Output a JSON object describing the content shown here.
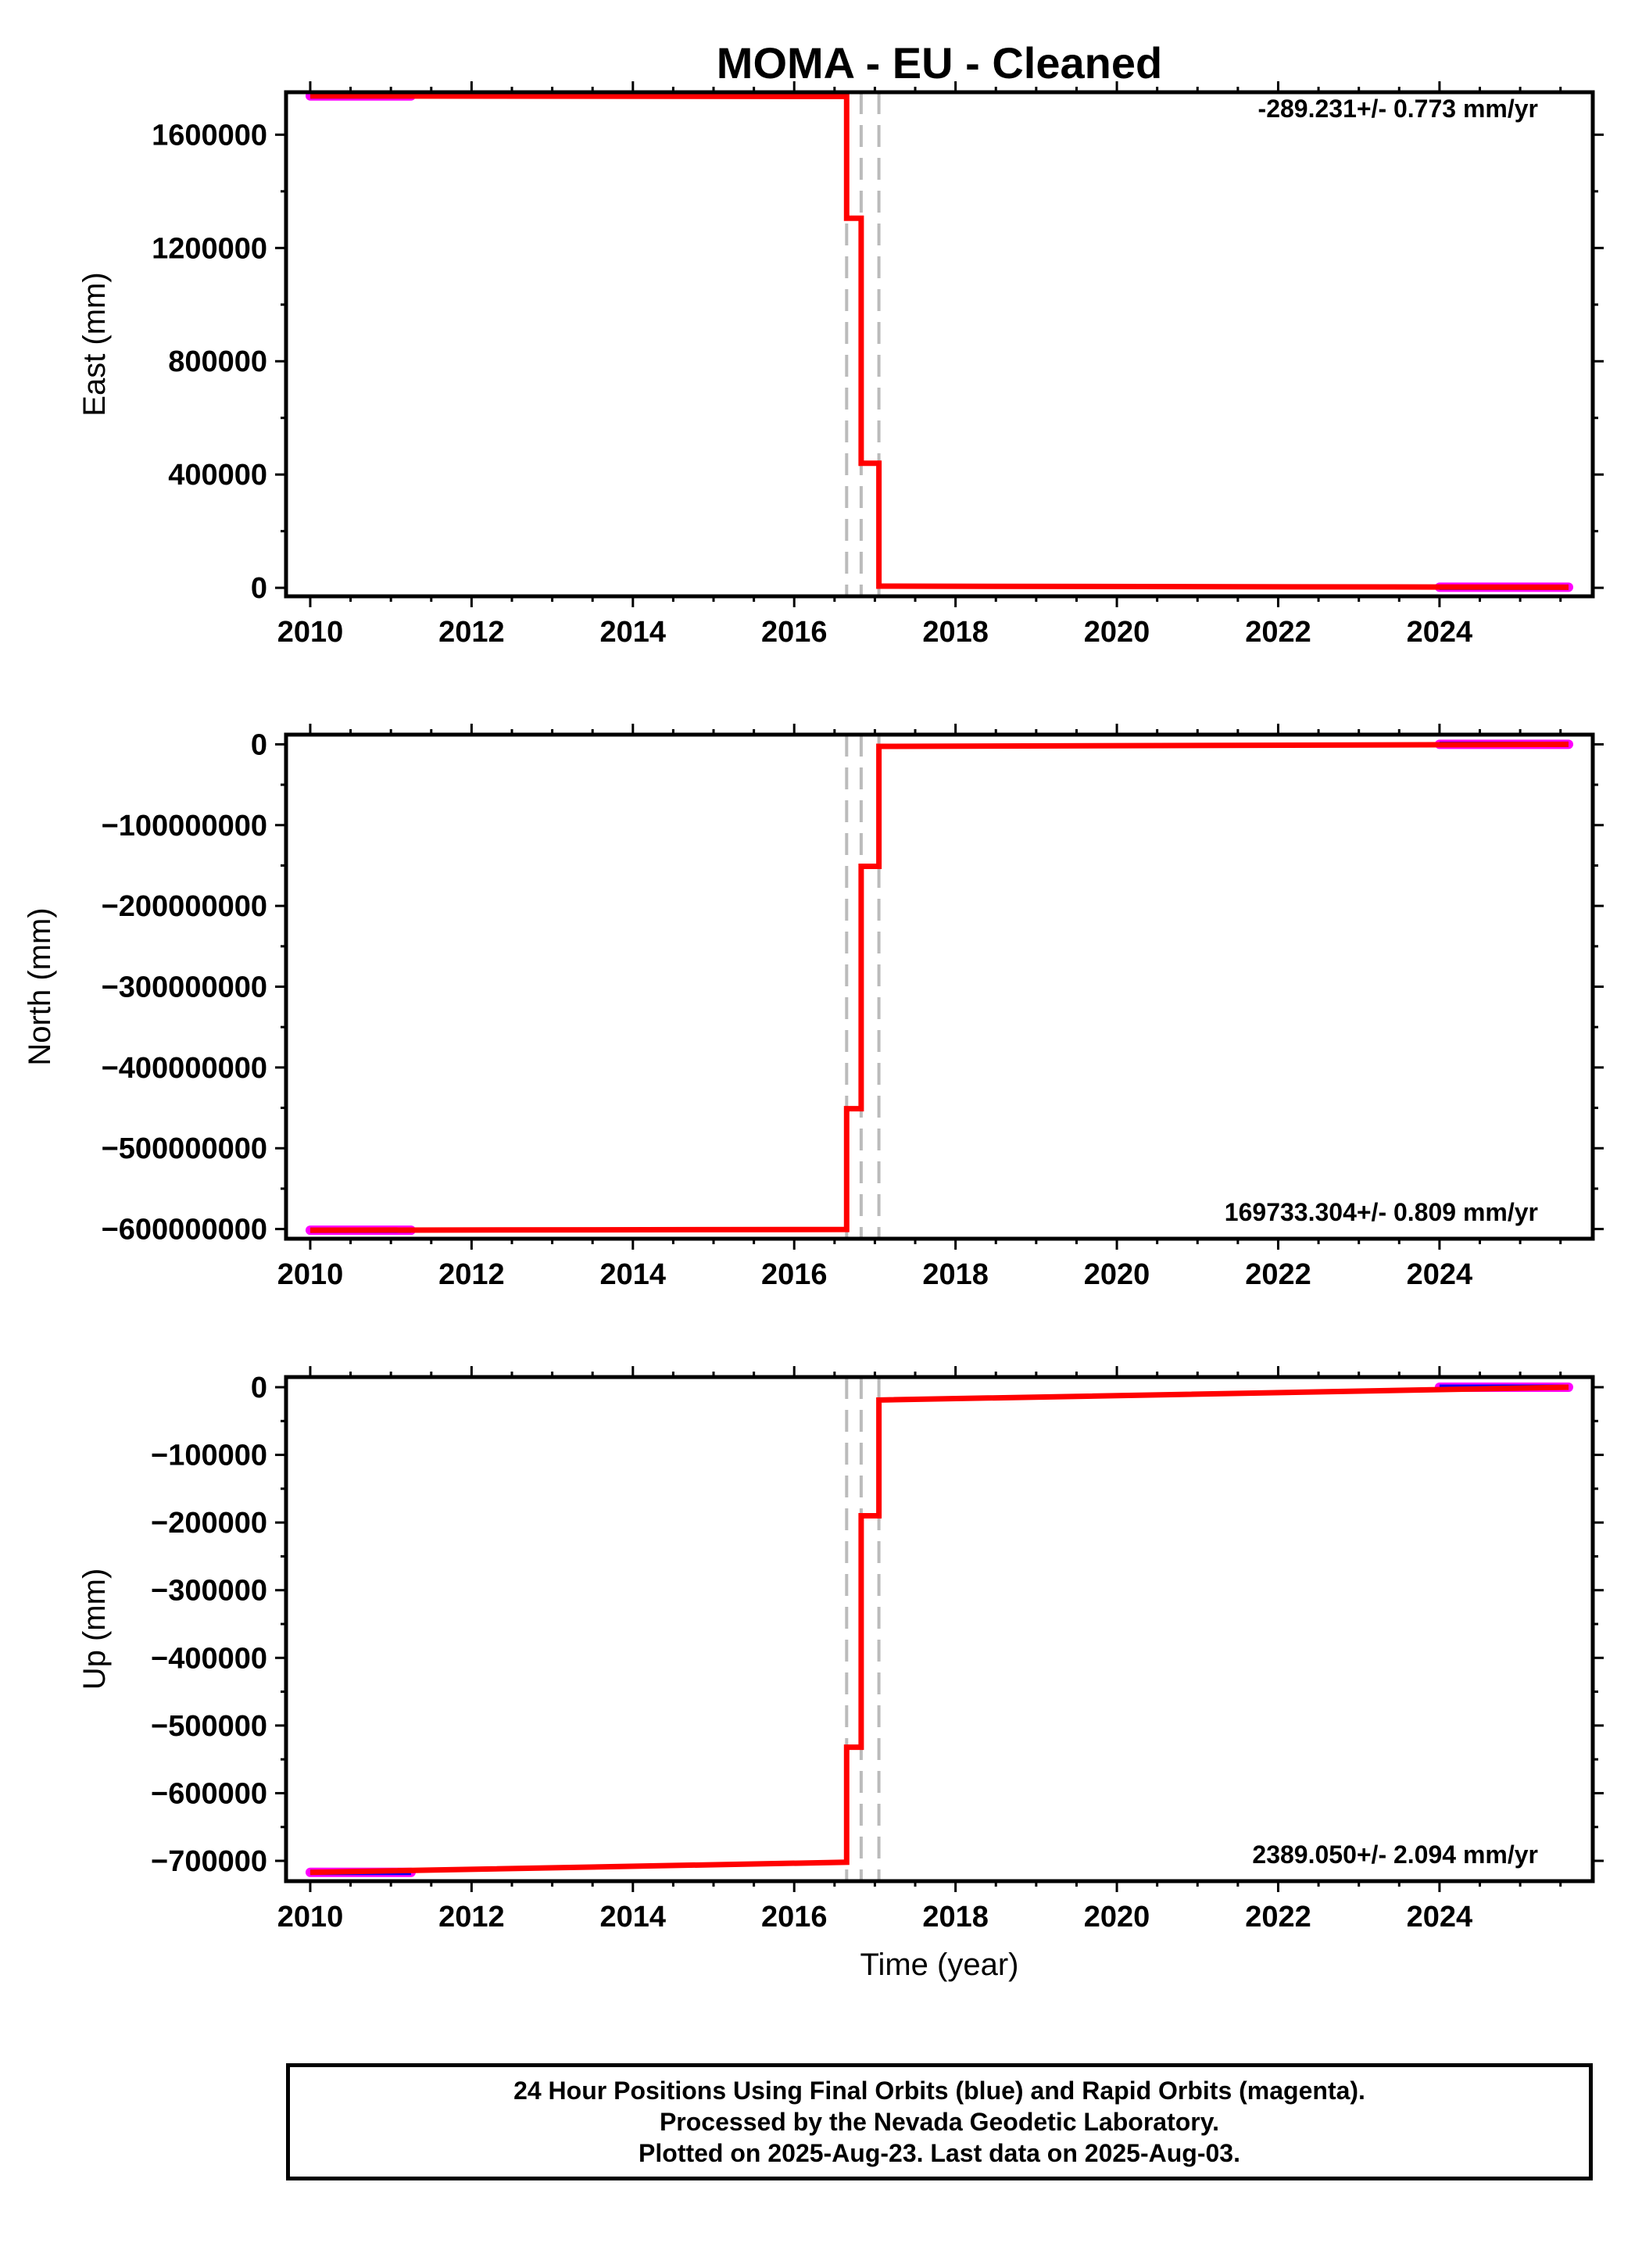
{
  "chart_data": [
    {
      "type": "line",
      "title": "MOMA  - EU - Cleaned",
      "ylabel": "East (mm)",
      "xlabel": "",
      "rate_label": "-289.231+/- 0.773 mm/yr",
      "xlim": [
        2009.7,
        2025.9
      ],
      "ylim": [
        -30000,
        1750000
      ],
      "xticks": [
        2010,
        2012,
        2014,
        2016,
        2018,
        2020,
        2022,
        2024
      ],
      "xtick_labels": [
        "2010",
        "2012",
        "2014",
        "2016",
        "2018",
        "2020",
        "2022",
        "2024"
      ],
      "yticks": [
        0,
        400000,
        800000,
        1200000,
        1600000
      ],
      "ytick_labels": [
        "0",
        "400000",
        "800000",
        "1200000",
        "1600000"
      ],
      "breaks": [
        2016.65,
        2016.83,
        2017.05
      ],
      "model": [
        [
          2010.0,
          1737000
        ],
        [
          2016.65,
          1735000
        ],
        [
          2016.65,
          1305000
        ],
        [
          2016.83,
          1305000
        ],
        [
          2016.83,
          440000
        ],
        [
          2017.05,
          440000
        ],
        [
          2017.05,
          6000
        ],
        [
          2025.6,
          2000
        ]
      ],
      "obs_segments": [
        [
          2010.0,
          2011.25,
          1737000
        ],
        [
          2024.0,
          2025.6,
          2000
        ]
      ]
    },
    {
      "type": "line",
      "title": "",
      "ylabel": "North (mm)",
      "xlabel": "",
      "rate_label": "169733.304+/- 0.809 mm/yr",
      "xlim": [
        2009.7,
        2025.9
      ],
      "ylim": [
        -612000000,
        12000000
      ],
      "xticks": [
        2010,
        2012,
        2014,
        2016,
        2018,
        2020,
        2022,
        2024
      ],
      "xtick_labels": [
        "2010",
        "2012",
        "2014",
        "2016",
        "2018",
        "2020",
        "2022",
        "2024"
      ],
      "yticks": [
        0,
        -100000000,
        -200000000,
        -300000000,
        -400000000,
        -500000000,
        -600000000
      ],
      "ytick_labels": [
        "0",
        "−100000000",
        "−200000000",
        "−300000000",
        "−400000000",
        "−500000000",
        "−600000000"
      ],
      "breaks": [
        2016.65,
        2016.83,
        2017.05
      ],
      "model": [
        [
          2010.0,
          -601500000
        ],
        [
          2016.65,
          -600500000
        ],
        [
          2016.65,
          -451000000
        ],
        [
          2016.83,
          -451000000
        ],
        [
          2016.83,
          -151000000
        ],
        [
          2017.05,
          -151000000
        ],
        [
          2017.05,
          -2500000
        ],
        [
          2025.6,
          0
        ]
      ],
      "obs_segments": [
        [
          2010.0,
          2011.25,
          -601500000
        ],
        [
          2024.0,
          2025.6,
          0
        ]
      ]
    },
    {
      "type": "line",
      "title": "",
      "ylabel": "Up (mm)",
      "xlabel": "Time (year)",
      "rate_label": "2389.050+/- 2.094 mm/yr",
      "xlim": [
        2009.7,
        2025.9
      ],
      "ylim": [
        -730000,
        15000
      ],
      "xticks": [
        2010,
        2012,
        2014,
        2016,
        2018,
        2020,
        2022,
        2024
      ],
      "xtick_labels": [
        "2010",
        "2012",
        "2014",
        "2016",
        "2018",
        "2020",
        "2022",
        "2024"
      ],
      "yticks": [
        0,
        -100000,
        -200000,
        -300000,
        -400000,
        -500000,
        -600000,
        -700000
      ],
      "ytick_labels": [
        "0",
        "−100000",
        "−200000",
        "−300000",
        "−400000",
        "−500000",
        "−600000",
        "−700000"
      ],
      "breaks": [
        2016.65,
        2016.83,
        2017.05
      ],
      "model": [
        [
          2010.0,
          -717000
        ],
        [
          2016.65,
          -702000
        ],
        [
          2016.65,
          -532000
        ],
        [
          2016.83,
          -532000
        ],
        [
          2016.83,
          -190000
        ],
        [
          2017.05,
          -190000
        ],
        [
          2017.05,
          -19000
        ],
        [
          2025.6,
          0
        ]
      ],
      "obs_segments": [
        [
          2010.0,
          2011.25,
          -717000
        ],
        [
          2024.0,
          2025.6,
          0
        ]
      ]
    }
  ],
  "colors": {
    "model": "#ff0000",
    "final_orbits": "#0000ff",
    "rapid_orbits": "#ff00ff",
    "breaks": "#bbbbbb",
    "frame": "#000000"
  },
  "footer": {
    "line1": "24 Hour Positions Using Final Orbits (blue) and Rapid Orbits (magenta).",
    "line2": "Processed by the Nevada Geodetic Laboratory.",
    "line3": "Plotted on 2025-Aug-23. Last data on 2025-Aug-03."
  }
}
